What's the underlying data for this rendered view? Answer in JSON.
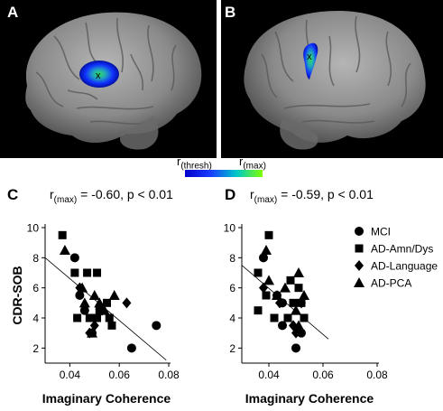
{
  "panels": {
    "a": "A",
    "b": "B",
    "c": "C",
    "d": "D"
  },
  "colorbar": {
    "low_label": "r",
    "low_sub": "(thresh)",
    "high_label": "r",
    "high_sub": "(max)",
    "colors": [
      "#0000cc",
      "#1a3cff",
      "#00c8c8",
      "#7fff00"
    ]
  },
  "brain": {
    "marker": "x",
    "blob_color": "#1030ff",
    "blob_core": "#20c890"
  },
  "plot_c": {
    "title_prefix": "r",
    "title_sub": "(max)",
    "title_suffix": " = -0.60, p < 0.01"
  },
  "plot_d": {
    "title_prefix": "r",
    "title_sub": "(max)",
    "title_suffix": " = -0.59, p < 0.01"
  },
  "legend": [
    "MCI",
    "AD-Amn/Dys",
    "AD-Language",
    "AD-PCA"
  ],
  "chart_data": [
    {
      "type": "scatter",
      "ylabel": "CDR-SOB",
      "xlabel": "Imaginary Coherence",
      "xlim": [
        0.03,
        0.08
      ],
      "ylim": [
        1,
        10
      ],
      "xticks": [
        "0.04",
        "0.06",
        "0.08"
      ],
      "yticks": [
        "2",
        "4",
        "6",
        "8",
        "10"
      ],
      "fit_line": [
        [
          0.03,
          8.0
        ],
        [
          0.079,
          1.2
        ]
      ],
      "series": [
        {
          "name": "MCI",
          "marker": "circle",
          "points": [
            [
              0.042,
              8.0
            ],
            [
              0.044,
              5.5
            ],
            [
              0.046,
              4.5
            ],
            [
              0.049,
              3.0
            ],
            [
              0.065,
              2.0
            ],
            [
              0.075,
              3.5
            ]
          ]
        },
        {
          "name": "AD-Amn/Dys",
          "marker": "square",
          "points": [
            [
              0.037,
              9.5
            ],
            [
              0.042,
              7.0
            ],
            [
              0.043,
              4.0
            ],
            [
              0.047,
              7.0
            ],
            [
              0.048,
              4.0
            ],
            [
              0.051,
              7.0
            ],
            [
              0.052,
              4.5
            ],
            [
              0.055,
              5.0
            ],
            [
              0.056,
              4.0
            ],
            [
              0.057,
              3.5
            ],
            [
              0.051,
              4.0
            ]
          ]
        },
        {
          "name": "AD-Language",
          "marker": "diamond",
          "points": [
            [
              0.044,
              6.0
            ],
            [
              0.048,
              3.0
            ],
            [
              0.05,
              3.5
            ],
            [
              0.053,
              4.5
            ],
            [
              0.063,
              5.0
            ]
          ]
        },
        {
          "name": "AD-PCA",
          "marker": "triangle",
          "points": [
            [
              0.038,
              8.5
            ],
            [
              0.045,
              6.0
            ],
            [
              0.046,
              5.0
            ],
            [
              0.05,
              5.5
            ],
            [
              0.052,
              5.0
            ],
            [
              0.054,
              4.5
            ],
            [
              0.058,
              5.5
            ],
            [
              0.049,
              3.0
            ]
          ]
        }
      ]
    },
    {
      "type": "scatter",
      "ylabel": "",
      "xlabel": "Imaginary Coherence",
      "xlim": [
        0.03,
        0.08
      ],
      "ylim": [
        1,
        10
      ],
      "xticks": [
        "0.04",
        "0.06",
        "0.08"
      ],
      "yticks": [
        "2",
        "4",
        "6",
        "8",
        "10"
      ],
      "fit_line": [
        [
          0.03,
          7.5
        ],
        [
          0.062,
          2.6
        ]
      ],
      "series": [
        {
          "name": "MCI",
          "marker": "circle",
          "points": [
            [
              0.038,
              8.0
            ],
            [
              0.043,
              5.5
            ],
            [
              0.045,
              5.0
            ],
            [
              0.05,
              2.0
            ],
            [
              0.052,
              3.0
            ],
            [
              0.045,
              3.5
            ]
          ]
        },
        {
          "name": "AD-Amn/Dys",
          "marker": "square",
          "points": [
            [
              0.04,
              9.5
            ],
            [
              0.036,
              7.0
            ],
            [
              0.039,
              5.5
            ],
            [
              0.036,
              4.5
            ],
            [
              0.042,
              4.0
            ],
            [
              0.047,
              4.0
            ],
            [
              0.048,
              6.5
            ],
            [
              0.051,
              6.0
            ],
            [
              0.052,
              5.0
            ],
            [
              0.049,
              5.0
            ],
            [
              0.053,
              4.0
            ]
          ]
        },
        {
          "name": "AD-Language",
          "marker": "diamond",
          "points": [
            [
              0.038,
              6.0
            ],
            [
              0.044,
              5.0
            ],
            [
              0.049,
              3.5
            ],
            [
              0.05,
              3.0
            ],
            [
              0.052,
              5.0
            ]
          ]
        },
        {
          "name": "AD-PCA",
          "marker": "triangle",
          "points": [
            [
              0.039,
              8.5
            ],
            [
              0.04,
              6.5
            ],
            [
              0.043,
              5.5
            ],
            [
              0.046,
              6.0
            ],
            [
              0.051,
              7.0
            ],
            [
              0.05,
              4.5
            ],
            [
              0.053,
              5.5
            ],
            [
              0.051,
              3.5
            ]
          ]
        }
      ]
    }
  ]
}
